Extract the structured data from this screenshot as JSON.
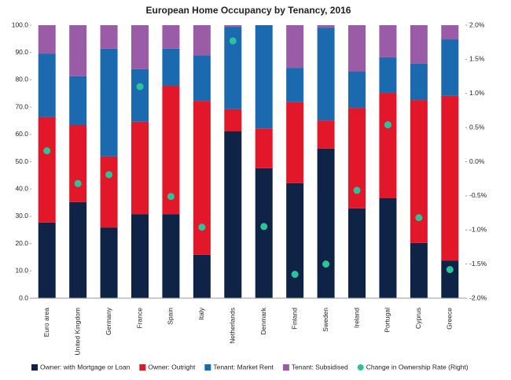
{
  "chart_data": {
    "type": "bar",
    "stacked": true,
    "title": "European Home Occupancy by Tenancy, 2016",
    "categories": [
      "Euro area",
      "United Kingdom",
      "Germany",
      "France",
      "Spain",
      "Italy",
      "Netherlands",
      "Denmark",
      "Finland",
      "Sweden",
      "Ireland",
      "Portugal",
      "Cyprus",
      "Greece"
    ],
    "series": [
      {
        "name": "Owner: with Mortgage or Loan",
        "color": "#0f2347",
        "values": [
          27.7,
          35.2,
          25.9,
          30.8,
          30.8,
          15.9,
          61.1,
          47.6,
          42.1,
          54.8,
          32.9,
          36.6,
          20.2,
          13.8
        ]
      },
      {
        "name": "Owner: Outright",
        "color": "#e3172a",
        "values": [
          38.6,
          28.2,
          26.0,
          33.8,
          47.0,
          56.4,
          8.1,
          14.6,
          29.7,
          10.3,
          36.8,
          38.6,
          52.4,
          60.3
        ]
      },
      {
        "name": "Tenant: Market Rent",
        "color": "#1b69af",
        "values": [
          23.3,
          17.9,
          39.5,
          19.3,
          13.6,
          16.7,
          30.2,
          37.8,
          12.6,
          34.0,
          13.3,
          13.0,
          13.3,
          20.7
        ]
      },
      {
        "name": "Tenant: Subsidised",
        "color": "#9a5ba7",
        "values": [
          10.4,
          18.7,
          8.6,
          16.1,
          8.6,
          11.0,
          0.6,
          0,
          15.6,
          0.9,
          17.0,
          11.8,
          14.1,
          5.2
        ]
      },
      {
        "name": "Change in Ownership Rate (Right)",
        "color": "#2ec29b",
        "type": "scatter",
        "axis": "y2",
        "values": [
          0.16,
          -0.32,
          -0.19,
          1.1,
          -0.51,
          -0.96,
          1.77,
          -0.95,
          -1.65,
          -1.5,
          -0.42,
          0.54,
          -0.82,
          -1.58
        ]
      }
    ],
    "ylim": [
      0,
      100
    ],
    "yticks": [
      {
        "value": 0,
        "label": "0.0"
      },
      {
        "value": 10,
        "label": "10.0"
      },
      {
        "value": 20,
        "label": "20.0"
      },
      {
        "value": 30,
        "label": "30.0"
      },
      {
        "value": 40,
        "label": "40.0"
      },
      {
        "value": 50,
        "label": "50.0"
      },
      {
        "value": 60,
        "label": "60.0"
      },
      {
        "value": 70,
        "label": "70.0"
      },
      {
        "value": 80,
        "label": "80.0"
      },
      {
        "value": 90,
        "label": "90.0"
      },
      {
        "value": 100,
        "label": "100.0"
      }
    ],
    "y2lim": [
      -2,
      2
    ],
    "y2ticks": [
      {
        "value": -2,
        "label": "-2.0%"
      },
      {
        "value": -1.5,
        "label": "-1.5%"
      },
      {
        "value": -1,
        "label": "-1.0%"
      },
      {
        "value": -0.5,
        "label": "-0.5%"
      },
      {
        "value": 0,
        "label": "0.0%"
      },
      {
        "value": 0.5,
        "label": "0.5%"
      },
      {
        "value": 1,
        "label": "1.0%"
      },
      {
        "value": 1.5,
        "label": "1.5%"
      },
      {
        "value": 2,
        "label": "2.0%"
      }
    ],
    "legend": "bottom",
    "grid": false
  }
}
